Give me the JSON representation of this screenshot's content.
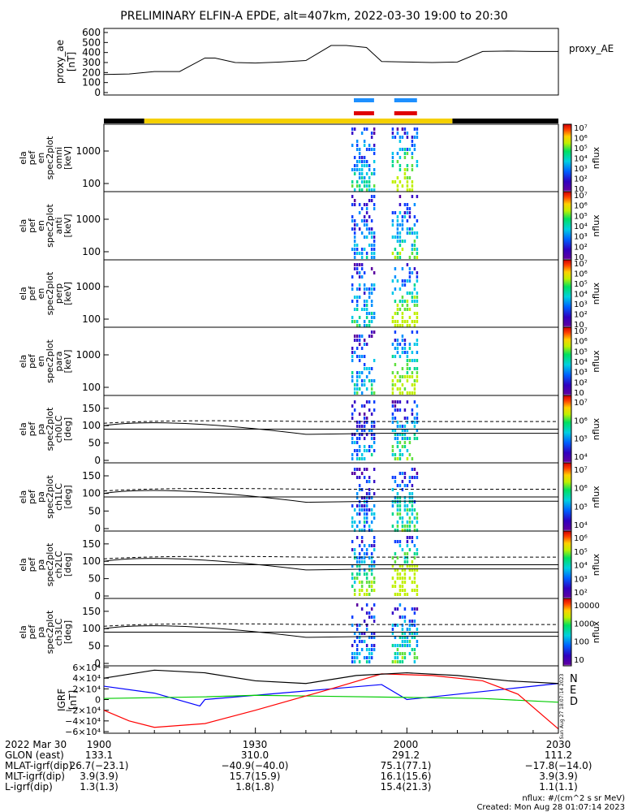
{
  "title": "PRELIMINARY ELFIN-A EPDE, alt=407km, 2022-03-30 19:00 to 20:30",
  "proxy_ae": {
    "ylabel": "proxy_ae\n[nT]",
    "yticks": [
      "0",
      "100",
      "200",
      "300",
      "400",
      "500",
      "600"
    ],
    "legend": "proxy_AE"
  },
  "energy_panels": [
    {
      "ylabel": [
        "ela",
        "pef",
        "en",
        "spec2plot",
        "omni",
        "[keV]"
      ],
      "yticks": [
        "100",
        "1000"
      ],
      "cbar_ticks": [
        "10^7",
        "10^6",
        "10^5",
        "10^4",
        "10^3",
        "10^2",
        "10"
      ],
      "cbar_label": "nflux"
    },
    {
      "ylabel": [
        "ela",
        "pef",
        "en",
        "spec2plot",
        "anti",
        "[keV]"
      ],
      "yticks": [
        "100",
        "1000"
      ],
      "cbar_ticks": [
        "10^7",
        "10^6",
        "10^5",
        "10^4",
        "10^3",
        "10^2",
        "10"
      ],
      "cbar_label": "nflux"
    },
    {
      "ylabel": [
        "ela",
        "pef",
        "en",
        "spec2plot",
        "perp",
        "[keV]"
      ],
      "yticks": [
        "100",
        "1000"
      ],
      "cbar_ticks": [
        "10^7",
        "10^6",
        "10^5",
        "10^4",
        "10^3",
        "10^2",
        "10"
      ],
      "cbar_label": "nflux"
    },
    {
      "ylabel": [
        "ela",
        "pef",
        "en",
        "spec2plot",
        "para",
        "[keV]"
      ],
      "yticks": [
        "100",
        "1000"
      ],
      "cbar_ticks": [
        "10^7",
        "10^6",
        "10^5",
        "10^4",
        "10^3",
        "10^2",
        "10"
      ],
      "cbar_label": "nflux"
    }
  ],
  "pa_panels": [
    {
      "ylabel": [
        "ela",
        "pef",
        "pa",
        "spec2plot",
        "ch0LC",
        "[deg]"
      ],
      "yticks": [
        "0",
        "50",
        "100",
        "150"
      ],
      "cbar_ticks": [
        "10^7",
        "10^6",
        "10^5",
        "10^4"
      ],
      "cbar_label": "nflux"
    },
    {
      "ylabel": [
        "ela",
        "pef",
        "pa",
        "spec2plot",
        "ch1LC",
        "[deg]"
      ],
      "yticks": [
        "0",
        "50",
        "100",
        "150"
      ],
      "cbar_ticks": [
        "10^7",
        "10^6",
        "10^5",
        "10^4"
      ],
      "cbar_label": "nflux"
    },
    {
      "ylabel": [
        "ela",
        "pef",
        "pa",
        "spec2plot",
        "ch2LC",
        "[deg]"
      ],
      "yticks": [
        "0",
        "50",
        "100",
        "150"
      ],
      "cbar_ticks": [
        "10^6",
        "10^5",
        "10^4",
        "10^3",
        "10^2"
      ],
      "cbar_label": "nflux"
    },
    {
      "ylabel": [
        "ela",
        "pef",
        "pa",
        "spec2plot",
        "ch3LC",
        "[deg]"
      ],
      "yticks": [
        "0",
        "50",
        "100",
        "150"
      ],
      "cbar_ticks": [
        "10000",
        "1000",
        "100",
        "10"
      ],
      "cbar_label": "nflux"
    }
  ],
  "igrf": {
    "ylabel": "IGRF\n[nT]",
    "yticks": [
      "6×10^4",
      "4×10^4",
      "2×10^4",
      "0",
      "−2×10^4",
      "−4×10^4",
      "−6×10^4"
    ],
    "legend": [
      {
        "name": "N",
        "color": "#0000ff"
      },
      {
        "name": "E",
        "color": "#00cc00"
      },
      {
        "name": "D",
        "color": "#ff0000"
      }
    ],
    "side_stamp": "Sun Aug 27 18:07:14 2023"
  },
  "footer": {
    "rows": [
      {
        "label": "2022 Mar 30",
        "values": [
          "1900",
          "1930",
          "2000",
          "2030"
        ]
      },
      {
        "label": "GLON (east)",
        "values": [
          "133.1",
          "310.0",
          "291.2",
          "111.2"
        ]
      },
      {
        "label": "MLAT-igrf(dip)",
        "values": [
          "26.7(−23.1)",
          "−40.9(−40.0)",
          "75.1(77.1)",
          "−17.8(−14.0)"
        ]
      },
      {
        "label": "MLT-igrf(dip)",
        "values": [
          "3.9(3.9)",
          "15.7(15.9)",
          "16.1(15.6)",
          "3.9(3.9)"
        ]
      },
      {
        "label": "L-igrf(dip)",
        "values": [
          "1.3(1.3)",
          "1.8(1.8)",
          "15.4(21.3)",
          "1.1(1.1)"
        ]
      }
    ],
    "units_note": "nflux: #/(cm^2 s sr MeV)",
    "created": "Created: Mon Aug 28 01:07:14 2023"
  },
  "chart_data": {
    "type": "line",
    "x_range": [
      "19:00",
      "20:30"
    ],
    "proxy_ae_series": {
      "x_minutes": [
        0,
        5,
        10,
        15,
        20,
        22,
        26,
        30,
        35,
        40,
        45,
        48,
        52,
        55,
        60,
        65,
        70,
        75,
        80,
        85,
        90
      ],
      "values": [
        180,
        185,
        210,
        210,
        345,
        345,
        300,
        295,
        305,
        320,
        470,
        470,
        450,
        310,
        305,
        300,
        305,
        410,
        415,
        410,
        410
      ]
    },
    "bars": {
      "blue_segments_minutes": [
        [
          49.5,
          53.5
        ],
        [
          57.5,
          62.0
        ]
      ],
      "red_segments_minutes": [
        [
          49.5,
          53.5
        ],
        [
          57.5,
          62.0
        ]
      ]
    },
    "status_bar": {
      "yellow_minutes": [
        8,
        69
      ],
      "black_minutes": [
        [
          0,
          8
        ],
        [
          69,
          90
        ]
      ]
    },
    "data_windows_minutes": [
      [
        49.0,
        53.5
      ],
      [
        57.0,
        62.0
      ]
    ],
    "igrf_series": [
      {
        "name": "N",
        "color": "#0000ff",
        "points": [
          [
            0,
            25000
          ],
          [
            10,
            12000
          ],
          [
            19,
            -12000
          ],
          [
            20,
            0
          ],
          [
            30,
            8000
          ],
          [
            45,
            20000
          ],
          [
            55,
            28000
          ],
          [
            60,
            0
          ],
          [
            70,
            10000
          ],
          [
            80,
            20000
          ],
          [
            90,
            30000
          ]
        ]
      },
      {
        "name": "E",
        "color": "#00cc00",
        "points": [
          [
            0,
            2000
          ],
          [
            20,
            5000
          ],
          [
            30,
            8000
          ],
          [
            45,
            6000
          ],
          [
            60,
            4000
          ],
          [
            75,
            2000
          ],
          [
            90,
            -5000
          ]
        ]
      },
      {
        "name": "D",
        "color": "#ff0000",
        "points": [
          [
            0,
            -20000
          ],
          [
            5,
            -40000
          ],
          [
            10,
            -52000
          ],
          [
            20,
            -45000
          ],
          [
            30,
            -20000
          ],
          [
            45,
            20000
          ],
          [
            55,
            48000
          ],
          [
            65,
            45000
          ],
          [
            75,
            35000
          ],
          [
            82,
            10000
          ],
          [
            90,
            -55000
          ]
        ]
      },
      {
        "name": "total",
        "color": "#000000",
        "points": [
          [
            0,
            40000
          ],
          [
            10,
            55000
          ],
          [
            20,
            50000
          ],
          [
            30,
            35000
          ],
          [
            40,
            30000
          ],
          [
            50,
            45000
          ],
          [
            60,
            50000
          ],
          [
            70,
            45000
          ],
          [
            80,
            35000
          ],
          [
            90,
            30000
          ]
        ]
      }
    ],
    "loss_cone_deg": {
      "solid": [
        90,
        110
      ],
      "dashed": 112
    }
  }
}
